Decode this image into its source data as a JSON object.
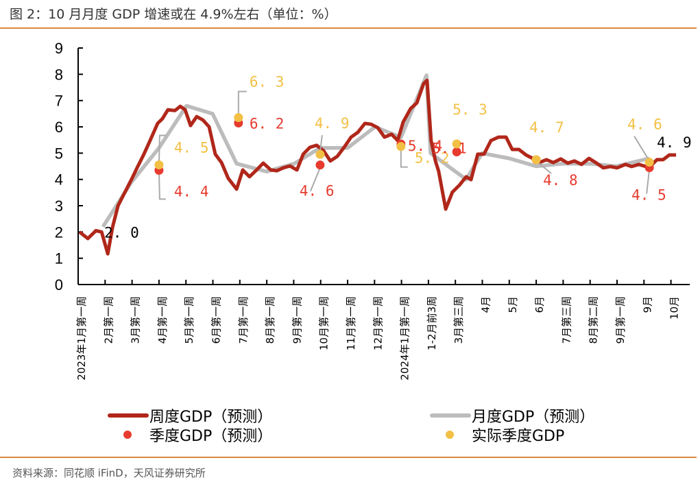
{
  "title": "图 2：10 月月度 GDP 增速或在 4.9%左右（单位：%）",
  "source": "资料来源：同花顺 iFinD，天风证券研究所",
  "colors": {
    "weekly": "#b0271a",
    "monthly": "#bcbcbc",
    "quarterly_forecast": "#e63b2e",
    "quarterly_actual": "#f2c045",
    "rule": "#d98a3f"
  },
  "chart_data": {
    "type": "line",
    "title": "10 月月度 GDP 增速或在 4.9%左右",
    "xlabel": "",
    "ylabel": "",
    "ylim": [
      0,
      9
    ],
    "yticks": [
      "0",
      "1",
      "2",
      "3",
      "4",
      "5",
      "6",
      "7",
      "8",
      "9"
    ],
    "categories": [
      "2023年1月第一周",
      "2月第一周",
      "3月第一周",
      "4月第一周",
      "5月第一周",
      "6月第一周",
      "7月第一周",
      "8月第一周",
      "9月第一周",
      "10月第一周",
      "11月第一周",
      "12月第一周",
      "2024年1月第一周",
      "1-2月前3周",
      "3月第三周",
      "4月",
      "5月",
      "6月",
      "7月第三周",
      "8月第二周",
      "9月第一周",
      "9月",
      "10月"
    ],
    "legend": [
      {
        "name": "周度GDP（预测）",
        "kind": "line"
      },
      {
        "name": "月度GDP（预测）",
        "kind": "line"
      },
      {
        "name": "季度GDP（预测）",
        "kind": "dot"
      },
      {
        "name": "实际季度GDP",
        "kind": "dot"
      }
    ],
    "series": [
      {
        "name": "周度GDP（预测）",
        "points": [
          [
            0.05,
            2.0
          ],
          [
            0.36,
            1.75
          ],
          [
            0.66,
            2.05
          ],
          [
            0.87,
            2.0
          ],
          [
            1.1,
            1.17
          ],
          [
            1.28,
            2.2
          ],
          [
            1.48,
            3.0
          ],
          [
            1.73,
            3.5
          ],
          [
            1.98,
            4.0
          ],
          [
            2.19,
            4.45
          ],
          [
            2.44,
            4.96
          ],
          [
            2.67,
            5.48
          ],
          [
            2.95,
            6.13
          ],
          [
            3.13,
            6.31
          ],
          [
            3.33,
            6.65
          ],
          [
            3.59,
            6.62
          ],
          [
            3.79,
            6.78
          ],
          [
            3.97,
            6.65
          ],
          [
            4.17,
            6.05
          ],
          [
            4.4,
            6.39
          ],
          [
            4.63,
            6.26
          ],
          [
            4.86,
            6.0
          ],
          [
            5.09,
            4.96
          ],
          [
            5.32,
            4.64
          ],
          [
            5.57,
            4.04
          ],
          [
            5.88,
            3.63
          ],
          [
            6.11,
            4.36
          ],
          [
            6.36,
            4.1
          ],
          [
            6.62,
            4.36
          ],
          [
            6.87,
            4.62
          ],
          [
            7.15,
            4.36
          ],
          [
            7.38,
            4.33
          ],
          [
            7.61,
            4.44
          ],
          [
            7.86,
            4.51
          ],
          [
            8.12,
            4.36
          ],
          [
            8.35,
            4.96
          ],
          [
            8.6,
            5.22
          ],
          [
            8.85,
            5.3
          ],
          [
            9.11,
            5.09
          ],
          [
            9.36,
            4.7
          ],
          [
            9.62,
            4.88
          ],
          [
            9.87,
            5.22
          ],
          [
            10.13,
            5.61
          ],
          [
            10.38,
            5.79
          ],
          [
            10.64,
            6.13
          ],
          [
            10.87,
            6.1
          ],
          [
            11.12,
            5.97
          ],
          [
            11.37,
            5.61
          ],
          [
            11.63,
            5.72
          ],
          [
            11.86,
            5.48
          ],
          [
            12.06,
            6.18
          ],
          [
            12.34,
            6.7
          ],
          [
            12.57,
            6.91
          ],
          [
            12.82,
            7.64
          ],
          [
            12.95,
            7.77
          ],
          [
            13.1,
            5.48
          ],
          [
            13.26,
            4.7
          ],
          [
            13.38,
            4.31
          ],
          [
            13.64,
            2.87
          ],
          [
            13.89,
            3.52
          ],
          [
            14.15,
            3.78
          ],
          [
            14.4,
            4.1
          ],
          [
            14.58,
            3.99
          ],
          [
            14.83,
            4.96
          ],
          [
            15.06,
            4.96
          ],
          [
            15.32,
            5.48
          ],
          [
            15.6,
            5.61
          ],
          [
            15.88,
            5.61
          ],
          [
            16.11,
            5.14
          ],
          [
            16.36,
            5.14
          ],
          [
            16.62,
            4.93
          ],
          [
            16.87,
            4.8
          ],
          [
            17.12,
            4.64
          ],
          [
            17.38,
            4.75
          ],
          [
            17.63,
            4.64
          ],
          [
            17.91,
            4.78
          ],
          [
            18.17,
            4.62
          ],
          [
            18.42,
            4.7
          ],
          [
            18.68,
            4.57
          ],
          [
            18.96,
            4.8
          ],
          [
            19.24,
            4.62
          ],
          [
            19.49,
            4.44
          ],
          [
            19.75,
            4.49
          ],
          [
            20.0,
            4.44
          ],
          [
            20.31,
            4.57
          ],
          [
            20.54,
            4.49
          ],
          [
            20.81,
            4.57
          ],
          [
            21.07,
            4.49
          ],
          [
            21.3,
            4.57
          ],
          [
            21.48,
            4.75
          ],
          [
            21.71,
            4.75
          ],
          [
            21.94,
            4.93
          ],
          [
            22.19,
            4.93
          ]
        ]
      },
      {
        "name": "月度GDP（预测）",
        "points": [
          [
            0.92,
            2.2
          ],
          [
            1.98,
            3.9
          ],
          [
            3.0,
            5.2
          ],
          [
            4.02,
            6.8
          ],
          [
            4.99,
            6.5
          ],
          [
            5.88,
            4.6
          ],
          [
            7.0,
            4.3
          ],
          [
            8.02,
            4.6
          ],
          [
            8.98,
            5.2
          ],
          [
            10.0,
            5.2
          ],
          [
            11.02,
            6.0
          ],
          [
            11.98,
            5.6
          ],
          [
            12.93,
            7.96
          ],
          [
            13.08,
            5.0
          ],
          [
            14.4,
            4.0
          ],
          [
            14.99,
            5.0
          ],
          [
            16.0,
            4.8
          ],
          [
            17.0,
            4.5
          ],
          [
            17.99,
            4.6
          ],
          [
            19.0,
            4.6
          ],
          [
            19.97,
            4.5
          ],
          [
            21.2,
            4.8
          ]
        ]
      },
      {
        "name": "季度GDP（预测）",
        "points": [
          [
            3.0,
            4.4
          ],
          [
            5.95,
            6.2
          ],
          [
            8.98,
            4.6
          ],
          [
            11.98,
            5.4
          ],
          [
            14.05,
            5.1
          ],
          [
            17.0,
            4.8
          ],
          [
            21.2,
            4.5
          ]
        ]
      },
      {
        "name": "实际季度GDP",
        "points": [
          [
            3.0,
            4.5
          ],
          [
            5.95,
            6.3
          ],
          [
            8.98,
            4.9
          ],
          [
            11.98,
            5.2
          ],
          [
            14.05,
            5.3
          ],
          [
            17.0,
            4.7
          ],
          [
            21.2,
            4.6
          ]
        ]
      }
    ],
    "annotations": [
      {
        "text": "2.0",
        "x": 0.92,
        "y": 2.0,
        "color": "#000000"
      },
      {
        "text": "4.5",
        "x": 3.0,
        "y": 4.5,
        "color": "#f2c045"
      },
      {
        "text": "4.4",
        "x": 3.0,
        "y": 4.4,
        "color": "#e63b2e"
      },
      {
        "text": "6.3",
        "x": 5.95,
        "y": 6.3,
        "color": "#f2c045"
      },
      {
        "text": "6.2",
        "x": 5.95,
        "y": 6.2,
        "color": "#e63b2e"
      },
      {
        "text": "4.9",
        "x": 8.98,
        "y": 4.9,
        "color": "#f2c045"
      },
      {
        "text": "4.6",
        "x": 8.98,
        "y": 4.6,
        "color": "#e63b2e"
      },
      {
        "text": "5.4",
        "x": 11.98,
        "y": 5.4,
        "color": "#e63b2e"
      },
      {
        "text": "5.2",
        "x": 11.98,
        "y": 5.2,
        "color": "#f2c045"
      },
      {
        "text": "5.3",
        "x": 14.05,
        "y": 5.3,
        "color": "#f2c045"
      },
      {
        "text": "5.1",
        "x": 14.05,
        "y": 5.1,
        "color": "#e63b2e"
      },
      {
        "text": "4.7",
        "x": 17.0,
        "y": 4.7,
        "color": "#f2c045"
      },
      {
        "text": "4.8",
        "x": 17.0,
        "y": 4.8,
        "color": "#e63b2e"
      },
      {
        "text": "4.6",
        "x": 21.2,
        "y": 4.6,
        "color": "#f2c045"
      },
      {
        "text": "4.5",
        "x": 21.2,
        "y": 4.5,
        "color": "#e63b2e"
      },
      {
        "text": "4.9",
        "x": 22.19,
        "y": 4.9,
        "color": "#000000"
      }
    ]
  }
}
